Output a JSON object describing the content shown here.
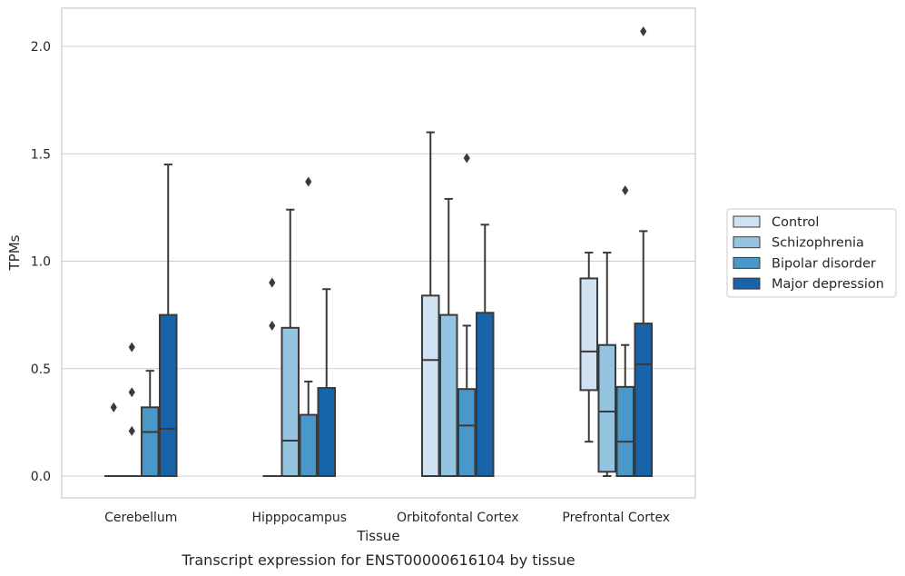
{
  "chart_data": {
    "type": "box",
    "caption": "Transcript expression for ENST00000616104 by tissue",
    "xlabel": "Tissue",
    "ylabel": "TPMs",
    "ylim": [
      -0.1,
      2.18
    ],
    "yticks": [
      0.0,
      0.5,
      1.0,
      1.5,
      2.0
    ],
    "ytick_labels": [
      "0.0",
      "0.5",
      "1.0",
      "1.5",
      "2.0"
    ],
    "grid": "horizontal",
    "legend_placement": "right",
    "categories": [
      "Cerebellum",
      "Hipppocampus",
      "Orbitofontal Cortex",
      "Prefrontal Cortex"
    ],
    "series": [
      {
        "name": "Control",
        "color": "#d0e1f2",
        "boxes": [
          {
            "q1": 0,
            "median": 0,
            "q3": 0,
            "whisker_low": 0,
            "whisker_high": 0,
            "outliers": [
              0.32
            ]
          },
          {
            "q1": 0,
            "median": 0,
            "q3": 0,
            "whisker_low": 0,
            "whisker_high": 0,
            "outliers": [
              0.7,
              0.9
            ]
          },
          {
            "q1": 0,
            "median": 0.54,
            "q3": 0.84,
            "whisker_low": 0,
            "whisker_high": 1.6,
            "outliers": []
          },
          {
            "q1": 0.4,
            "median": 0.58,
            "q3": 0.92,
            "whisker_low": 0.16,
            "whisker_high": 1.04,
            "outliers": []
          }
        ]
      },
      {
        "name": "Schizophrenia",
        "color": "#94c4df",
        "boxes": [
          {
            "q1": 0,
            "median": 0,
            "q3": 0,
            "whisker_low": 0,
            "whisker_high": 0,
            "outliers": [
              0.21,
              0.39,
              0.6
            ]
          },
          {
            "q1": 0,
            "median": 0.165,
            "q3": 0.69,
            "whisker_low": 0,
            "whisker_high": 1.24,
            "outliers": []
          },
          {
            "q1": 0,
            "median": 0,
            "q3": 0.75,
            "whisker_low": 0,
            "whisker_high": 1.29,
            "outliers": []
          },
          {
            "q1": 0.02,
            "median": 0.3,
            "q3": 0.61,
            "whisker_low": 0,
            "whisker_high": 1.04,
            "outliers": []
          }
        ]
      },
      {
        "name": "Bipolar disorder",
        "color": "#4a98c9",
        "boxes": [
          {
            "q1": 0,
            "median": 0.205,
            "q3": 0.32,
            "whisker_low": 0,
            "whisker_high": 0.49,
            "outliers": []
          },
          {
            "q1": 0,
            "median": 0,
            "q3": 0.285,
            "whisker_low": 0,
            "whisker_high": 0.44,
            "outliers": [
              1.37
            ]
          },
          {
            "q1": 0,
            "median": 0.235,
            "q3": 0.405,
            "whisker_low": 0,
            "whisker_high": 0.7,
            "outliers": [
              1.48
            ]
          },
          {
            "q1": 0,
            "median": 0.16,
            "q3": 0.415,
            "whisker_low": 0,
            "whisker_high": 0.61,
            "outliers": [
              1.33
            ]
          }
        ]
      },
      {
        "name": "Major depression",
        "color": "#1764ab",
        "boxes": [
          {
            "q1": 0,
            "median": 0.22,
            "q3": 0.75,
            "whisker_low": 0,
            "whisker_high": 1.45,
            "outliers": []
          },
          {
            "q1": 0,
            "median": 0,
            "q3": 0.41,
            "whisker_low": 0,
            "whisker_high": 0.87,
            "outliers": []
          },
          {
            "q1": 0,
            "median": 0,
            "q3": 0.76,
            "whisker_low": 0,
            "whisker_high": 1.17,
            "outliers": []
          },
          {
            "q1": 0,
            "median": 0.52,
            "q3": 0.71,
            "whisker_low": 0,
            "whisker_high": 1.14,
            "outliers": [
              2.07
            ]
          }
        ]
      }
    ]
  }
}
